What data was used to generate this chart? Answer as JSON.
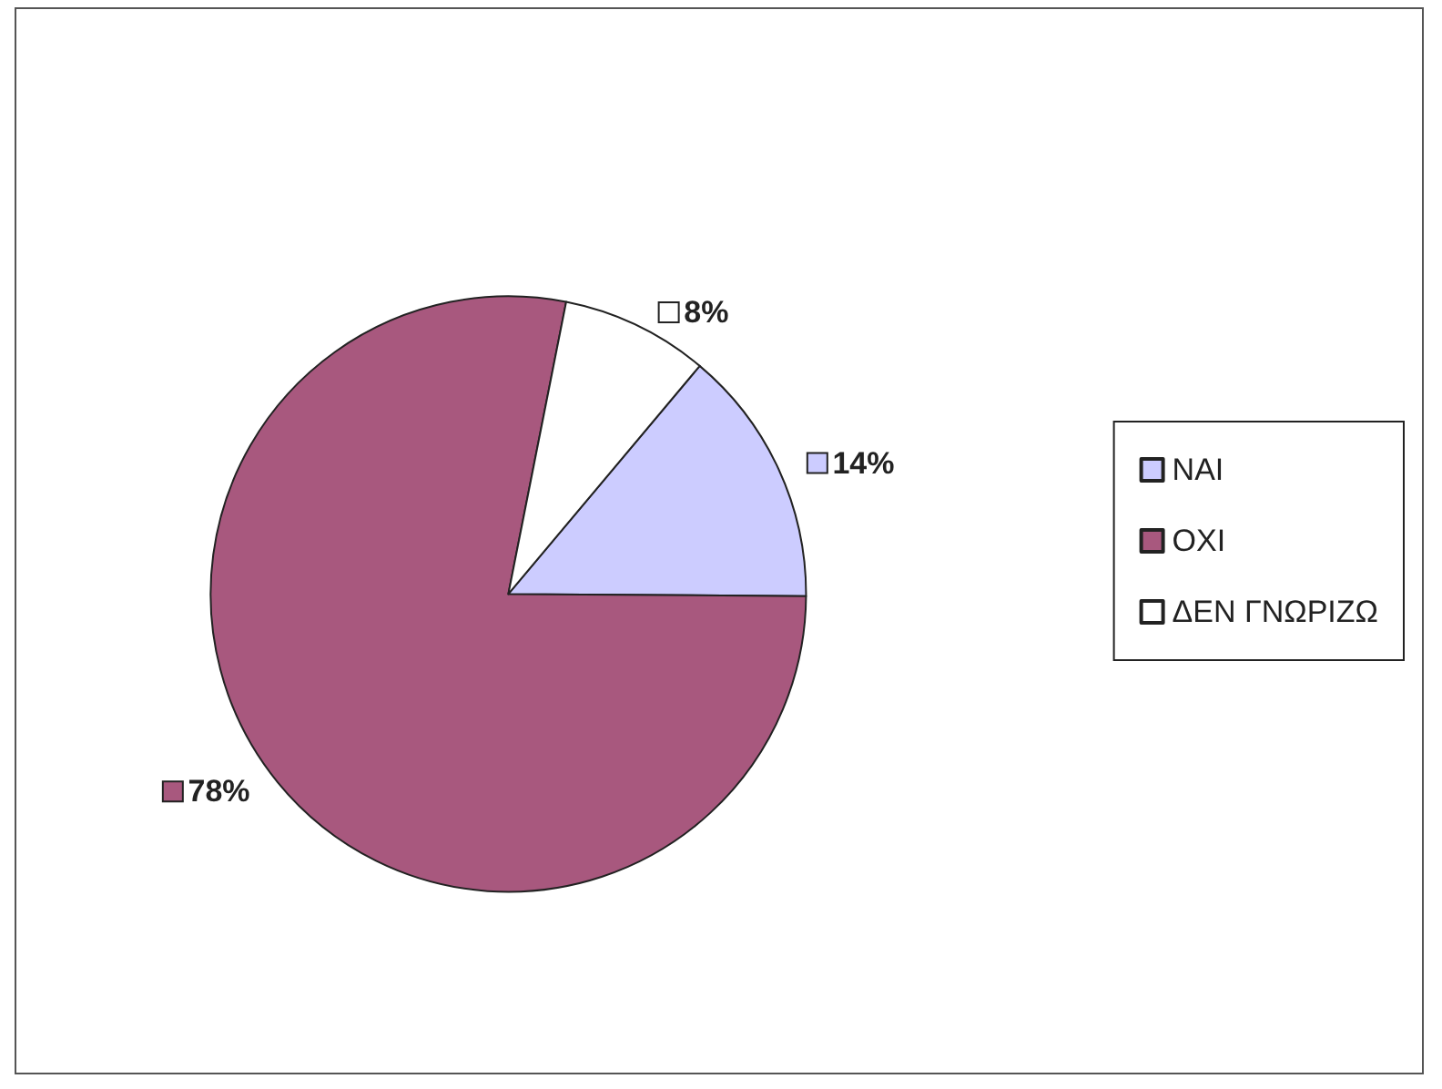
{
  "chart_data": {
    "type": "pie",
    "categories": [
      "ΝΑΙ",
      "ΟΧΙ",
      "ΔΕΝ ΓΝΩΡΙΖΩ"
    ],
    "values": [
      14,
      78,
      8
    ],
    "colors": [
      "#ccccff",
      "#a8587e",
      "#ffffff"
    ],
    "value_labels": [
      "14%",
      "78%",
      "8%"
    ],
    "legend": "right"
  }
}
